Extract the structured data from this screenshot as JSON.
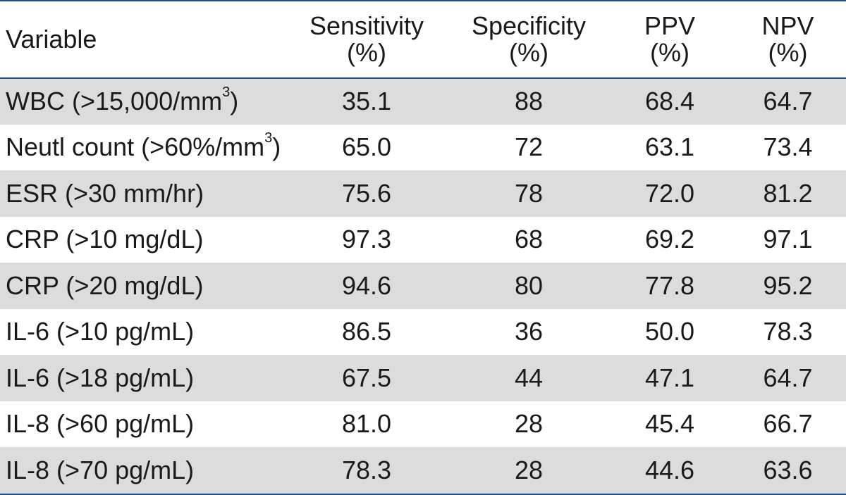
{
  "header": {
    "variable": "Variable",
    "sensitivity": [
      "Sensitivity",
      "(%)"
    ],
    "specificity": [
      "Specificity",
      "(%)"
    ],
    "ppv": [
      "PPV",
      "(%)"
    ],
    "npv": [
      "NPV",
      "(%)"
    ]
  },
  "rows": [
    {
      "label": "WBC (>15,000/mm",
      "sup": "3",
      "tail": ")",
      "sensitivity": "35.1",
      "specificity": "88",
      "ppv": "68.4",
      "npv": "64.7"
    },
    {
      "label": "Neutl count (>60%/mm",
      "sup": "3",
      "tail": ")",
      "sensitivity": "65.0",
      "specificity": "72",
      "ppv": "63.1",
      "npv": "73.4"
    },
    {
      "label": "ESR (>30 mm/hr)",
      "sup": "",
      "tail": "",
      "sensitivity": "75.6",
      "specificity": "78",
      "ppv": "72.0",
      "npv": "81.2"
    },
    {
      "label": "CRP (>10 mg/dL)",
      "sup": "",
      "tail": "",
      "sensitivity": "97.3",
      "specificity": "68",
      "ppv": "69.2",
      "npv": "97.1"
    },
    {
      "label": "CRP (>20 mg/dL)",
      "sup": "",
      "tail": "",
      "sensitivity": "94.6",
      "specificity": "80",
      "ppv": "77.8",
      "npv": "95.2"
    },
    {
      "label": "IL-6 (>10 pg/mL)",
      "sup": "",
      "tail": "",
      "sensitivity": "86.5",
      "specificity": "36",
      "ppv": "50.0",
      "npv": "78.3"
    },
    {
      "label": "IL-6 (>18 pg/mL)",
      "sup": "",
      "tail": "",
      "sensitivity": "67.5",
      "specificity": "44",
      "ppv": "47.1",
      "npv": "64.7"
    },
    {
      "label": "IL-8 (>60 pg/mL)",
      "sup": "",
      "tail": "",
      "sensitivity": "81.0",
      "specificity": "28",
      "ppv": "45.4",
      "npv": "66.7"
    },
    {
      "label": "IL-8 (>70 pg/mL)",
      "sup": "",
      "tail": "",
      "sensitivity": "78.3",
      "specificity": "28",
      "ppv": "44.6",
      "npv": "63.6"
    }
  ],
  "colors": {
    "rule": "#1f4f8f",
    "stripe": "#dcdcdc"
  }
}
